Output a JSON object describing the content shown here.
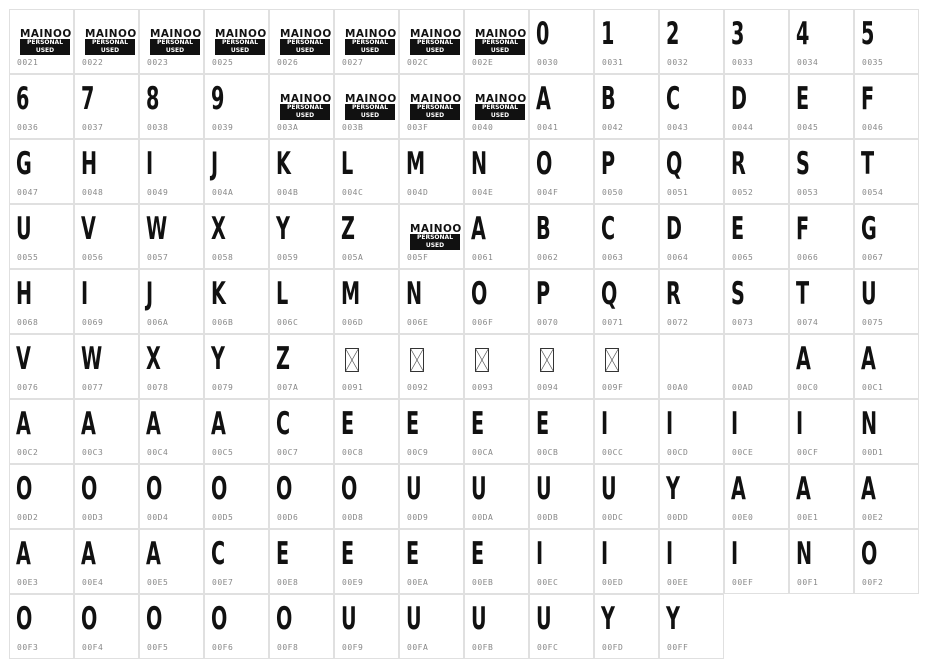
{
  "logo": {
    "line1": "MAINOO",
    "line2": "PERSONAL USED"
  },
  "cells": [
    {
      "code": "0021",
      "type": "logo"
    },
    {
      "code": "0022",
      "type": "logo"
    },
    {
      "code": "0023",
      "type": "logo"
    },
    {
      "code": "0025",
      "type": "logo"
    },
    {
      "code": "0026",
      "type": "logo"
    },
    {
      "code": "0027",
      "type": "logo"
    },
    {
      "code": "002C",
      "type": "logo"
    },
    {
      "code": "002E",
      "type": "logo"
    },
    {
      "code": "0030",
      "glyph": "0"
    },
    {
      "code": "0031",
      "glyph": "1"
    },
    {
      "code": "0032",
      "glyph": "2"
    },
    {
      "code": "0033",
      "glyph": "3"
    },
    {
      "code": "0034",
      "glyph": "4"
    },
    {
      "code": "0035",
      "glyph": "5"
    },
    {
      "code": "0036",
      "glyph": "6"
    },
    {
      "code": "0037",
      "glyph": "7"
    },
    {
      "code": "0038",
      "glyph": "8"
    },
    {
      "code": "0039",
      "glyph": "9"
    },
    {
      "code": "003A",
      "type": "logo"
    },
    {
      "code": "003B",
      "type": "logo"
    },
    {
      "code": "003F",
      "type": "logo"
    },
    {
      "code": "0040",
      "type": "logo"
    },
    {
      "code": "0041",
      "glyph": "A"
    },
    {
      "code": "0042",
      "glyph": "B"
    },
    {
      "code": "0043",
      "glyph": "C"
    },
    {
      "code": "0044",
      "glyph": "D"
    },
    {
      "code": "0045",
      "glyph": "E"
    },
    {
      "code": "0046",
      "glyph": "F"
    },
    {
      "code": "0047",
      "glyph": "G"
    },
    {
      "code": "0048",
      "glyph": "H"
    },
    {
      "code": "0049",
      "glyph": "I"
    },
    {
      "code": "004A",
      "glyph": "J"
    },
    {
      "code": "004B",
      "glyph": "K"
    },
    {
      "code": "004C",
      "glyph": "L"
    },
    {
      "code": "004D",
      "glyph": "M"
    },
    {
      "code": "004E",
      "glyph": "N"
    },
    {
      "code": "004F",
      "glyph": "O"
    },
    {
      "code": "0050",
      "glyph": "P"
    },
    {
      "code": "0051",
      "glyph": "Q"
    },
    {
      "code": "0052",
      "glyph": "R"
    },
    {
      "code": "0053",
      "glyph": "S"
    },
    {
      "code": "0054",
      "glyph": "T"
    },
    {
      "code": "0055",
      "glyph": "U"
    },
    {
      "code": "0056",
      "glyph": "V"
    },
    {
      "code": "0057",
      "glyph": "W"
    },
    {
      "code": "0058",
      "glyph": "X"
    },
    {
      "code": "0059",
      "glyph": "Y"
    },
    {
      "code": "005A",
      "glyph": "Z"
    },
    {
      "code": "005F",
      "type": "logo"
    },
    {
      "code": "0061",
      "glyph": "A"
    },
    {
      "code": "0062",
      "glyph": "B"
    },
    {
      "code": "0063",
      "glyph": "C"
    },
    {
      "code": "0064",
      "glyph": "D"
    },
    {
      "code": "0065",
      "glyph": "E"
    },
    {
      "code": "0066",
      "glyph": "F"
    },
    {
      "code": "0067",
      "glyph": "G"
    },
    {
      "code": "0068",
      "glyph": "H"
    },
    {
      "code": "0069",
      "glyph": "I"
    },
    {
      "code": "006A",
      "glyph": "J"
    },
    {
      "code": "006B",
      "glyph": "K"
    },
    {
      "code": "006C",
      "glyph": "L"
    },
    {
      "code": "006D",
      "glyph": "M"
    },
    {
      "code": "006E",
      "glyph": "N"
    },
    {
      "code": "006F",
      "glyph": "O"
    },
    {
      "code": "0070",
      "glyph": "P"
    },
    {
      "code": "0071",
      "glyph": "Q"
    },
    {
      "code": "0072",
      "glyph": "R"
    },
    {
      "code": "0073",
      "glyph": "S"
    },
    {
      "code": "0074",
      "glyph": "T"
    },
    {
      "code": "0075",
      "glyph": "U"
    },
    {
      "code": "0076",
      "glyph": "V"
    },
    {
      "code": "0077",
      "glyph": "W"
    },
    {
      "code": "0078",
      "glyph": "X"
    },
    {
      "code": "0079",
      "glyph": "Y"
    },
    {
      "code": "007A",
      "glyph": "Z"
    },
    {
      "code": "0091",
      "type": "missing"
    },
    {
      "code": "0092",
      "type": "missing"
    },
    {
      "code": "0093",
      "type": "missing"
    },
    {
      "code": "0094",
      "type": "missing"
    },
    {
      "code": "009F",
      "type": "missing"
    },
    {
      "code": "00A0",
      "glyph": ""
    },
    {
      "code": "00AD",
      "glyph": ""
    },
    {
      "code": "00C0",
      "glyph": "A"
    },
    {
      "code": "00C1",
      "glyph": "A"
    },
    {
      "code": "00C2",
      "glyph": "A"
    },
    {
      "code": "00C3",
      "glyph": "A"
    },
    {
      "code": "00C4",
      "glyph": "A"
    },
    {
      "code": "00C5",
      "glyph": "A"
    },
    {
      "code": "00C7",
      "glyph": "C"
    },
    {
      "code": "00C8",
      "glyph": "E"
    },
    {
      "code": "00C9",
      "glyph": "E"
    },
    {
      "code": "00CA",
      "glyph": "E"
    },
    {
      "code": "00CB",
      "glyph": "E"
    },
    {
      "code": "00CC",
      "glyph": "I"
    },
    {
      "code": "00CD",
      "glyph": "I"
    },
    {
      "code": "00CE",
      "glyph": "I"
    },
    {
      "code": "00CF",
      "glyph": "I"
    },
    {
      "code": "00D1",
      "glyph": "N"
    },
    {
      "code": "00D2",
      "glyph": "O"
    },
    {
      "code": "00D3",
      "glyph": "O"
    },
    {
      "code": "00D4",
      "glyph": "O"
    },
    {
      "code": "00D5",
      "glyph": "O"
    },
    {
      "code": "00D6",
      "glyph": "O"
    },
    {
      "code": "00D8",
      "glyph": "O"
    },
    {
      "code": "00D9",
      "glyph": "U"
    },
    {
      "code": "00DA",
      "glyph": "U"
    },
    {
      "code": "00DB",
      "glyph": "U"
    },
    {
      "code": "00DC",
      "glyph": "U"
    },
    {
      "code": "00DD",
      "glyph": "Y"
    },
    {
      "code": "00E0",
      "glyph": "A"
    },
    {
      "code": "00E1",
      "glyph": "A"
    },
    {
      "code": "00E2",
      "glyph": "A"
    },
    {
      "code": "00E3",
      "glyph": "A"
    },
    {
      "code": "00E4",
      "glyph": "A"
    },
    {
      "code": "00E5",
      "glyph": "A"
    },
    {
      "code": "00E7",
      "glyph": "C"
    },
    {
      "code": "00E8",
      "glyph": "E"
    },
    {
      "code": "00E9",
      "glyph": "E"
    },
    {
      "code": "00EA",
      "glyph": "E"
    },
    {
      "code": "00EB",
      "glyph": "E"
    },
    {
      "code": "00EC",
      "glyph": "I"
    },
    {
      "code": "00ED",
      "glyph": "I"
    },
    {
      "code": "00EE",
      "glyph": "I"
    },
    {
      "code": "00EF",
      "glyph": "I"
    },
    {
      "code": "00F1",
      "glyph": "N"
    },
    {
      "code": "00F2",
      "glyph": "O"
    },
    {
      "code": "00F3",
      "glyph": "O"
    },
    {
      "code": "00F4",
      "glyph": "O"
    },
    {
      "code": "00F5",
      "glyph": "O"
    },
    {
      "code": "00F6",
      "glyph": "O"
    },
    {
      "code": "00F8",
      "glyph": "O"
    },
    {
      "code": "00F9",
      "glyph": "U"
    },
    {
      "code": "00FA",
      "glyph": "U"
    },
    {
      "code": "00FB",
      "glyph": "U"
    },
    {
      "code": "00FC",
      "glyph": "U"
    },
    {
      "code": "00FD",
      "glyph": "Y"
    },
    {
      "code": "00FF",
      "glyph": "Y"
    }
  ]
}
